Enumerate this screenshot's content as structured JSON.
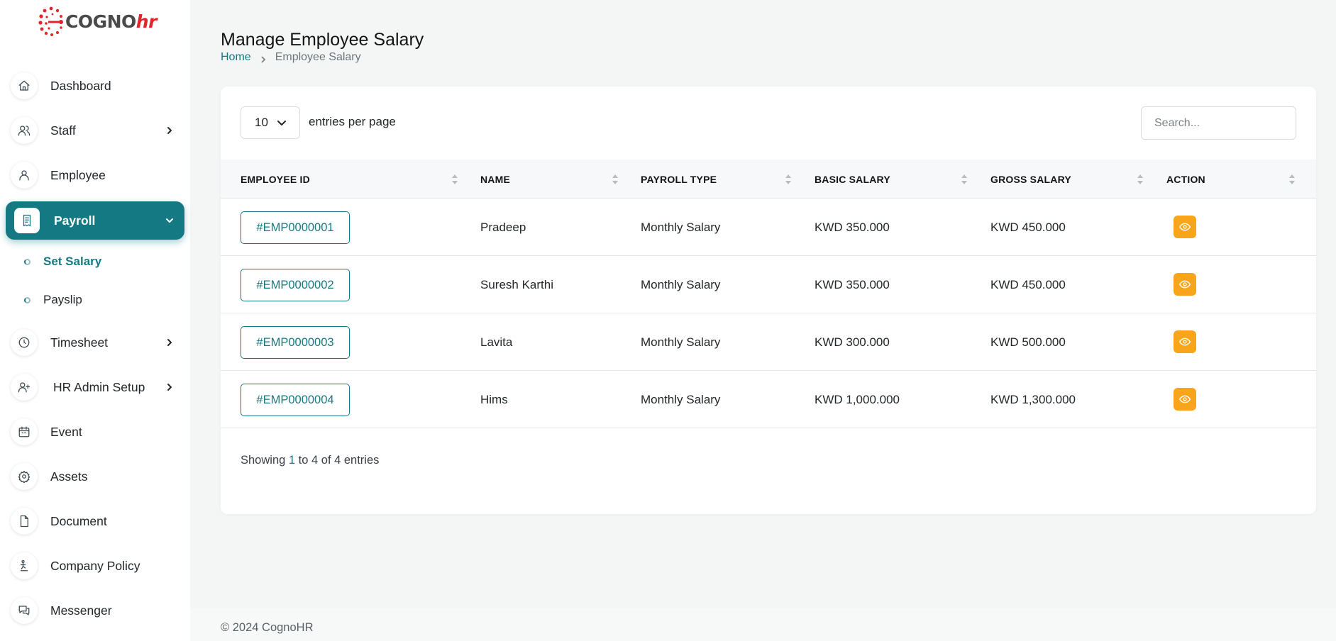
{
  "brand": {
    "name_main": "COGNO",
    "name_hr": "hr"
  },
  "sidebar": {
    "items": [
      {
        "label": "Dashboard",
        "icon": "home-icon"
      },
      {
        "label": "Staff",
        "icon": "users-icon"
      },
      {
        "label": "Employee",
        "icon": "user-icon"
      },
      {
        "label": "Payroll",
        "icon": "receipt-icon"
      },
      {
        "label": "Timesheet",
        "icon": "clock-icon"
      },
      {
        "label": "HR Admin Setup",
        "icon": "user-plus-icon"
      },
      {
        "label": "Event",
        "icon": "calendar-icon"
      },
      {
        "label": "Assets",
        "icon": "gear-icon"
      },
      {
        "label": "Document",
        "icon": "file-icon"
      },
      {
        "label": "Company Policy",
        "icon": "policy-icon"
      },
      {
        "label": "Messenger",
        "icon": "chat-icon"
      }
    ],
    "payroll_sub": [
      {
        "label": "Set Salary"
      },
      {
        "label": "Payslip"
      }
    ]
  },
  "header": {
    "title": "Manage Employee Salary",
    "breadcrumb": {
      "home": "Home",
      "current": "Employee Salary"
    }
  },
  "table_controls": {
    "entries_value": "10",
    "entries_label": "entries per page",
    "search_placeholder": "Search..."
  },
  "table": {
    "columns": [
      "EMPLOYEE ID",
      "NAME",
      "PAYROLL TYPE",
      "BASIC SALARY",
      "GROSS SALARY",
      "ACTION"
    ],
    "rows": [
      {
        "id": "#EMP0000001",
        "name": "Pradeep",
        "payroll_type": "Monthly Salary",
        "basic": "KWD 350.000",
        "gross": "KWD 450.000"
      },
      {
        "id": "#EMP0000002",
        "name": "Suresh Karthi",
        "payroll_type": "Monthly Salary",
        "basic": "KWD 350.000",
        "gross": "KWD 450.000"
      },
      {
        "id": "#EMP0000003",
        "name": "Lavita",
        "payroll_type": "Monthly Salary",
        "basic": "KWD 300.000",
        "gross": "KWD 500.000"
      },
      {
        "id": "#EMP0000004",
        "name": "Hims",
        "payroll_type": "Monthly Salary",
        "basic": "KWD 1,000.000",
        "gross": "KWD 1,300.000"
      }
    ]
  },
  "pagination": {
    "prefix": "Showing ",
    "from": "1",
    "to_text": " to 4 of 4 entries"
  },
  "footer": {
    "text": "© 2024 CognoHR"
  },
  "colors": {
    "accent": "#157983",
    "action": "#f8a51c",
    "danger_logo": "#e3242b"
  }
}
